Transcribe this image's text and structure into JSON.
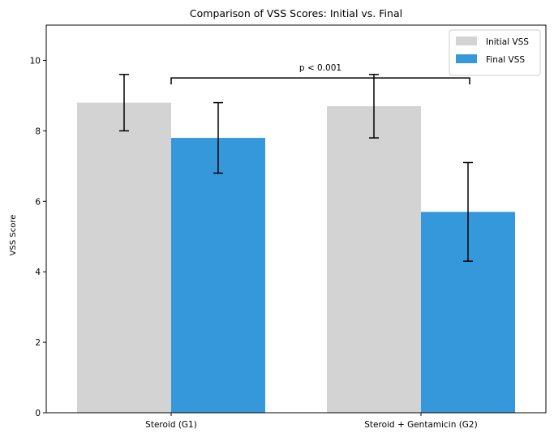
{
  "chart_data": {
    "type": "bar",
    "title": "Comparison of VSS Scores: Initial vs. Final",
    "xlabel": "",
    "ylabel": "VSS Score",
    "ylim": [
      0,
      11
    ],
    "yticks": [
      0,
      2,
      4,
      6,
      8,
      10
    ],
    "categories": [
      "Steroid (G1)",
      "Steroid + Gentamicin (G2)"
    ],
    "series": [
      {
        "name": "Initial VSS",
        "values": [
          8.8,
          8.7
        ],
        "errors": [
          0.8,
          0.9
        ],
        "color": "#d3d3d3"
      },
      {
        "name": "Final VSS",
        "values": [
          7.8,
          5.7
        ],
        "errors": [
          1.0,
          1.4
        ],
        "color": "#3498db"
      }
    ],
    "grid": false,
    "legend": {
      "position": "top-right"
    },
    "annotations": [
      {
        "text": "p < 0.001",
        "from_category": 0,
        "to_category": 1,
        "y": 9.5
      }
    ]
  }
}
